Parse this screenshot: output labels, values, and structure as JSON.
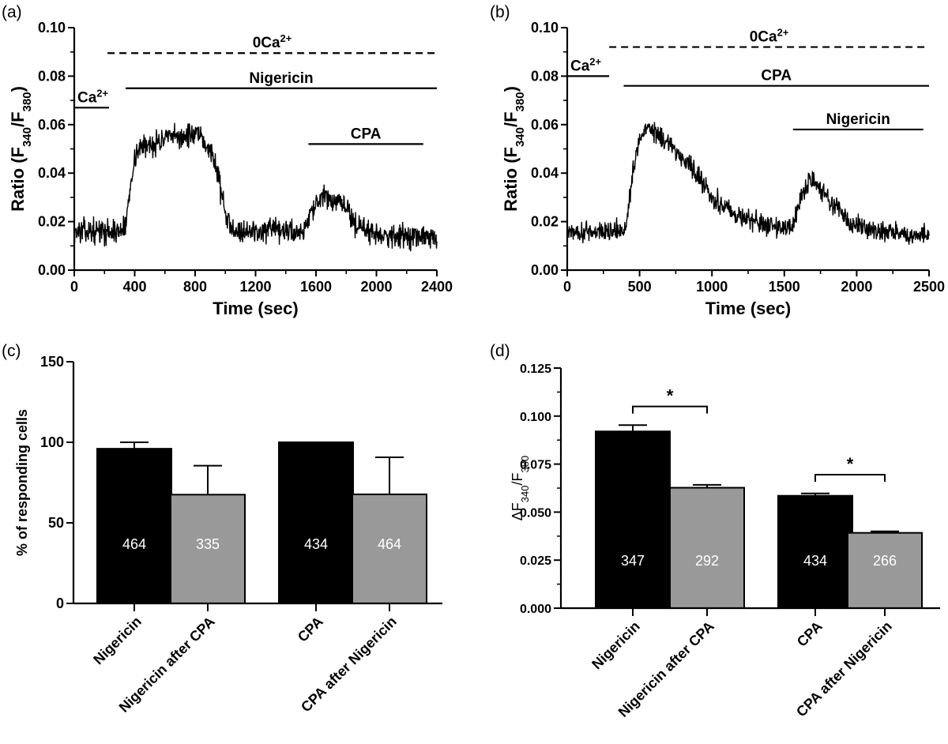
{
  "panels": [
    {
      "label": "(a)"
    },
    {
      "label": "(b)"
    },
    {
      "label": "(c)"
    },
    {
      "label": "(d)"
    }
  ],
  "colors": {
    "black": "#000000",
    "gray": "#999999",
    "trace": "#000000"
  },
  "chart_data": [
    {
      "id": "a",
      "type": "line",
      "title": "",
      "xlabel": "Time (sec)",
      "ylabel_parts": {
        "prefix": "Ratio (F",
        "sub1": "340",
        "mid": "/F",
        "sub2": "380",
        "suffix": ")"
      },
      "xlim": [
        0,
        2400
      ],
      "ylim": [
        0,
        0.1
      ],
      "xticks": [
        0,
        400,
        800,
        1200,
        1600,
        2000,
        2400
      ],
      "yticks": [
        0.0,
        0.02,
        0.04,
        0.06,
        0.08,
        0.1
      ],
      "ytick_labels": [
        "0.00",
        "0.02",
        "0.04",
        "0.06",
        "0.08",
        "0.10"
      ],
      "trace_profile": [
        [
          0,
          0.016
        ],
        [
          300,
          0.016
        ],
        [
          340,
          0.018
        ],
        [
          380,
          0.04
        ],
        [
          420,
          0.05
        ],
        [
          600,
          0.054
        ],
        [
          800,
          0.056
        ],
        [
          900,
          0.05
        ],
        [
          950,
          0.04
        ],
        [
          1010,
          0.02
        ],
        [
          1100,
          0.016
        ],
        [
          1520,
          0.016
        ],
        [
          1560,
          0.024
        ],
        [
          1650,
          0.03
        ],
        [
          1800,
          0.026
        ],
        [
          1870,
          0.018
        ],
        [
          2000,
          0.015
        ],
        [
          2400,
          0.013
        ]
      ],
      "trace_noise": 0.0035,
      "annotations": [
        {
          "text_main": "0Ca",
          "text_sup": "2+",
          "x_start": 220,
          "x_end": 2400,
          "y": 0.0895,
          "style": "dashed"
        },
        {
          "text_main": "Ca",
          "text_sup": "2+",
          "x_start": 0,
          "x_end": 230,
          "y": 0.067,
          "style": "solid"
        },
        {
          "text_main": "Nigericin",
          "x_start": 340,
          "x_end": 2400,
          "y": 0.075,
          "style": "solid"
        },
        {
          "text_main": "CPA",
          "x_start": 1550,
          "x_end": 2310,
          "y": 0.052,
          "style": "solid"
        }
      ]
    },
    {
      "id": "b",
      "type": "line",
      "title": "",
      "xlabel": "Time (sec)",
      "ylabel_parts": {
        "prefix": "Ratio (F",
        "sub1": "340",
        "mid": "/F",
        "sub2": "380",
        "suffix": ")"
      },
      "xlim": [
        0,
        2500
      ],
      "ylim": [
        0,
        0.1
      ],
      "xticks": [
        0,
        500,
        1000,
        1500,
        2000,
        2500
      ],
      "yticks": [
        0.0,
        0.02,
        0.04,
        0.06,
        0.08,
        0.1
      ],
      "ytick_labels": [
        "0.00",
        "0.02",
        "0.04",
        "0.06",
        "0.08",
        "0.10"
      ],
      "trace_profile": [
        [
          0,
          0.016
        ],
        [
          400,
          0.016
        ],
        [
          430,
          0.03
        ],
        [
          480,
          0.05
        ],
        [
          550,
          0.06
        ],
        [
          650,
          0.055
        ],
        [
          800,
          0.046
        ],
        [
          900,
          0.04
        ],
        [
          1000,
          0.03
        ],
        [
          1200,
          0.022
        ],
        [
          1400,
          0.018
        ],
        [
          1560,
          0.018
        ],
        [
          1620,
          0.03
        ],
        [
          1680,
          0.038
        ],
        [
          1800,
          0.03
        ],
        [
          1950,
          0.02
        ],
        [
          2100,
          0.016
        ],
        [
          2500,
          0.014
        ]
      ],
      "trace_noise": 0.003,
      "annotations": [
        {
          "text_main": "0Ca",
          "text_sup": "2+",
          "x_start": 290,
          "x_end": 2500,
          "y": 0.092,
          "style": "dashed"
        },
        {
          "text_main": "Ca",
          "text_sup": "2+",
          "x_start": 0,
          "x_end": 290,
          "y": 0.08,
          "style": "solid"
        },
        {
          "text_main": "CPA",
          "x_start": 390,
          "x_end": 2500,
          "y": 0.076,
          "style": "solid"
        },
        {
          "text_main": "Nigericin",
          "x_start": 1560,
          "x_end": 2460,
          "y": 0.058,
          "style": "solid"
        }
      ]
    },
    {
      "id": "c",
      "type": "bar",
      "title": "",
      "xlabel": "",
      "ylabel": "% of responding cells",
      "ylim": [
        0,
        150
      ],
      "yticks": [
        0,
        50,
        100,
        150
      ],
      "ytick_labels": [
        "0",
        "50",
        "100",
        "150"
      ],
      "categories": [
        "Nigericin",
        "Nigericin after CPA",
        "CPA",
        "CPA after Nigericin"
      ],
      "values": [
        96,
        67.5,
        100,
        67.7
      ],
      "errors": [
        4,
        18,
        0,
        23
      ],
      "counts": [
        "464",
        "335",
        "434",
        "464"
      ],
      "bar_colors": [
        "#000000",
        "#999999",
        "#000000",
        "#999999"
      ],
      "groups": [
        [
          0,
          1
        ],
        [
          2,
          3
        ]
      ],
      "significance": []
    },
    {
      "id": "d",
      "type": "bar",
      "title": "",
      "xlabel": "",
      "ylabel_parts": {
        "prefix": "ΔF",
        "sub1": "340",
        "mid": "/F",
        "sub2": "380",
        "suffix": ""
      },
      "ylim": [
        0,
        0.125
      ],
      "yticks": [
        0.0,
        0.025,
        0.05,
        0.075,
        0.1,
        0.125
      ],
      "ytick_labels": [
        "0.000",
        "0.025",
        "0.050",
        "0.075",
        "0.100",
        "0.125"
      ],
      "categories": [
        "Nigericin",
        "Nigericin after CPA",
        "CPA",
        "CPA after Nigericin"
      ],
      "values": [
        0.092,
        0.0627,
        0.0585,
        0.0392
      ],
      "errors": [
        0.0033,
        0.0015,
        0.0012,
        0.0008
      ],
      "counts": [
        "347",
        "292",
        "434",
        "266"
      ],
      "bar_colors": [
        "#000000",
        "#999999",
        "#000000",
        "#999999"
      ],
      "groups": [
        [
          0,
          1
        ],
        [
          2,
          3
        ]
      ],
      "significance": [
        {
          "between": [
            0,
            1
          ],
          "y": 0.105,
          "label": "*"
        },
        {
          "between": [
            2,
            3
          ],
          "y": 0.0695,
          "label": "*"
        }
      ]
    }
  ]
}
